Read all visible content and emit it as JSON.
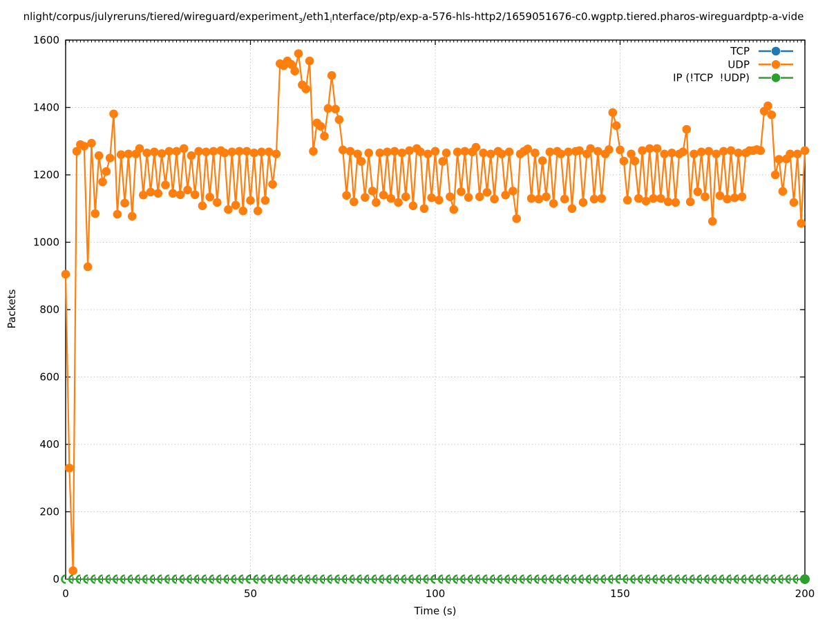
{
  "title": {
    "part1": "nlight/corpus/julyreruns/tiered/wireguard/experiment",
    "sub1": "3",
    "part2": "/eth1",
    "sub2": "i",
    "part3": "nterface/ptp/exp-a-576-hls-http2/1659051676-c0.wgptp.tiered.pharos-wireguardptp-a-vide"
  },
  "axes": {
    "ylabel": "Packets",
    "xlabel": "Time (s)",
    "x_ticks": [
      0,
      50,
      100,
      150,
      200
    ],
    "y_ticks": [
      0,
      200,
      400,
      600,
      800,
      1000,
      1200,
      1400,
      1600
    ],
    "xlim": [
      0,
      200
    ],
    "ylim": [
      0,
      1600
    ],
    "minor_x_tick_step": 1
  },
  "legend": {
    "position": "top-right",
    "entries": [
      {
        "label": "TCP",
        "color": "#1f77b4"
      },
      {
        "label": "UDP",
        "color": "#ff7f0e"
      },
      {
        "label": "IP (!TCP  !UDP)",
        "color": "#2ca02c"
      }
    ]
  },
  "colors": {
    "background": "#ffffff",
    "frame": "#000000",
    "grid": "#c8c8c8",
    "tcp": "#1f77b4",
    "udp": "#ff7f0e",
    "ip": "#2ca02c"
  },
  "chart_data": {
    "type": "line",
    "title": "nlight/corpus/julyreruns/tiered/wireguard/experiment₃/eth1ᵢnterface/ptp/exp-a-576-hls-http2/1659051676-c0.wgptp.tiered.pharos-wireguardptp-a-vide",
    "xlabel": "Time (s)",
    "ylabel": "Packets",
    "xlim": [
      0,
      200
    ],
    "ylim": [
      0,
      1600
    ],
    "grid": true,
    "legend_position": "top-right",
    "series": [
      {
        "name": "TCP",
        "color": "#1f77b4",
        "style": "linespoints",
        "constant_value": 0,
        "x_range": [
          0,
          200
        ],
        "x_step": 2
      },
      {
        "name": "UDP",
        "color": "#ff7f0e",
        "style": "linespoints",
        "points": [
          [
            0,
            905
          ],
          [
            1,
            330
          ],
          [
            2,
            25
          ],
          [
            3,
            1270
          ],
          [
            4,
            1290
          ],
          [
            5,
            1285
          ],
          [
            6,
            927
          ],
          [
            7,
            1294
          ],
          [
            8,
            1085
          ],
          [
            9,
            1257
          ],
          [
            10,
            1179
          ],
          [
            11,
            1210
          ],
          [
            12,
            1250
          ],
          [
            13,
            1381
          ],
          [
            14,
            1083
          ],
          [
            15,
            1260
          ],
          [
            16,
            1116
          ],
          [
            17,
            1262
          ],
          [
            18,
            1077
          ],
          [
            19,
            1262
          ],
          [
            20,
            1278
          ],
          [
            21,
            1140
          ],
          [
            22,
            1265
          ],
          [
            23,
            1149
          ],
          [
            24,
            1268
          ],
          [
            25,
            1145
          ],
          [
            26,
            1263
          ],
          [
            27,
            1170
          ],
          [
            28,
            1270
          ],
          [
            29,
            1145
          ],
          [
            30,
            1270
          ],
          [
            31,
            1141
          ],
          [
            32,
            1278
          ],
          [
            33,
            1155
          ],
          [
            34,
            1257
          ],
          [
            35,
            1141
          ],
          [
            36,
            1270
          ],
          [
            37,
            1108
          ],
          [
            38,
            1268
          ],
          [
            39,
            1134
          ],
          [
            40,
            1270
          ],
          [
            41,
            1118
          ],
          [
            42,
            1272
          ],
          [
            43,
            1265
          ],
          [
            44,
            1097
          ],
          [
            45,
            1268
          ],
          [
            46,
            1110
          ],
          [
            47,
            1270
          ],
          [
            48,
            1093
          ],
          [
            49,
            1270
          ],
          [
            50,
            1124
          ],
          [
            51,
            1265
          ],
          [
            52,
            1093
          ],
          [
            53,
            1268
          ],
          [
            54,
            1124
          ],
          [
            55,
            1268
          ],
          [
            56,
            1172
          ],
          [
            57,
            1262
          ],
          [
            58,
            1530
          ],
          [
            59,
            1524
          ],
          [
            60,
            1538
          ],
          [
            61,
            1528
          ],
          [
            62,
            1508
          ],
          [
            63,
            1560
          ],
          [
            64,
            1467
          ],
          [
            65,
            1455
          ],
          [
            66,
            1538
          ],
          [
            67,
            1270
          ],
          [
            68,
            1354
          ],
          [
            69,
            1344
          ],
          [
            70,
            1315
          ],
          [
            71,
            1397
          ],
          [
            72,
            1495
          ],
          [
            73,
            1395
          ],
          [
            74,
            1364
          ],
          [
            75,
            1274
          ],
          [
            76,
            1139
          ],
          [
            77,
            1270
          ],
          [
            78,
            1120
          ],
          [
            79,
            1262
          ],
          [
            80,
            1240
          ],
          [
            81,
            1133
          ],
          [
            82,
            1265
          ],
          [
            83,
            1152
          ],
          [
            84,
            1118
          ],
          [
            85,
            1265
          ],
          [
            86,
            1140
          ],
          [
            87,
            1268
          ],
          [
            88,
            1130
          ],
          [
            89,
            1270
          ],
          [
            90,
            1118
          ],
          [
            91,
            1265
          ],
          [
            92,
            1135
          ],
          [
            93,
            1272
          ],
          [
            94,
            1108
          ],
          [
            95,
            1278
          ],
          [
            96,
            1268
          ],
          [
            97,
            1100
          ],
          [
            98,
            1262
          ],
          [
            99,
            1132
          ],
          [
            100,
            1270
          ],
          [
            101,
            1125
          ],
          [
            102,
            1240
          ],
          [
            103,
            1265
          ],
          [
            104,
            1135
          ],
          [
            105,
            1097
          ],
          [
            106,
            1268
          ],
          [
            107,
            1150
          ],
          [
            108,
            1270
          ],
          [
            109,
            1133
          ],
          [
            110,
            1268
          ],
          [
            111,
            1282
          ],
          [
            112,
            1135
          ],
          [
            113,
            1265
          ],
          [
            114,
            1148
          ],
          [
            115,
            1262
          ],
          [
            116,
            1128
          ],
          [
            117,
            1270
          ],
          [
            118,
            1262
          ],
          [
            119,
            1140
          ],
          [
            120,
            1268
          ],
          [
            121,
            1152
          ],
          [
            122,
            1070
          ],
          [
            123,
            1262
          ],
          [
            124,
            1270
          ],
          [
            125,
            1277
          ],
          [
            126,
            1130
          ],
          [
            127,
            1265
          ],
          [
            128,
            1128
          ],
          [
            129,
            1242
          ],
          [
            130,
            1135
          ],
          [
            131,
            1268
          ],
          [
            132,
            1115
          ],
          [
            133,
            1270
          ],
          [
            134,
            1262
          ],
          [
            135,
            1128
          ],
          [
            136,
            1268
          ],
          [
            137,
            1100
          ],
          [
            138,
            1270
          ],
          [
            139,
            1272
          ],
          [
            140,
            1118
          ],
          [
            141,
            1262
          ],
          [
            142,
            1278
          ],
          [
            143,
            1128
          ],
          [
            144,
            1270
          ],
          [
            145,
            1130
          ],
          [
            146,
            1262
          ],
          [
            147,
            1275
          ],
          [
            148,
            1385
          ],
          [
            149,
            1346
          ],
          [
            150,
            1274
          ],
          [
            151,
            1241
          ],
          [
            152,
            1125
          ],
          [
            153,
            1262
          ],
          [
            154,
            1241
          ],
          [
            155,
            1130
          ],
          [
            156,
            1272
          ],
          [
            157,
            1122
          ],
          [
            158,
            1278
          ],
          [
            159,
            1130
          ],
          [
            160,
            1278
          ],
          [
            161,
            1130
          ],
          [
            162,
            1262
          ],
          [
            163,
            1120
          ],
          [
            164,
            1265
          ],
          [
            165,
            1118
          ],
          [
            166,
            1262
          ],
          [
            167,
            1268
          ],
          [
            168,
            1335
          ],
          [
            169,
            1120
          ],
          [
            170,
            1262
          ],
          [
            171,
            1150
          ],
          [
            172,
            1268
          ],
          [
            173,
            1135
          ],
          [
            174,
            1270
          ],
          [
            175,
            1062
          ],
          [
            176,
            1262
          ],
          [
            177,
            1138
          ],
          [
            178,
            1270
          ],
          [
            179,
            1128
          ],
          [
            180,
            1272
          ],
          [
            181,
            1132
          ],
          [
            182,
            1265
          ],
          [
            183,
            1135
          ],
          [
            184,
            1265
          ],
          [
            185,
            1272
          ],
          [
            186,
            1272
          ],
          [
            187,
            1275
          ],
          [
            188,
            1272
          ],
          [
            189,
            1389
          ],
          [
            190,
            1405
          ],
          [
            191,
            1378
          ],
          [
            192,
            1200
          ],
          [
            193,
            1246
          ],
          [
            194,
            1151
          ],
          [
            195,
            1247
          ],
          [
            196,
            1262
          ],
          [
            197,
            1118
          ],
          [
            198,
            1262
          ],
          [
            199,
            1056
          ],
          [
            200,
            1272
          ]
        ]
      },
      {
        "name": "IP (!TCP  !UDP)",
        "color": "#2ca02c",
        "style": "linespoints",
        "constant_value": 0,
        "x_range": [
          0,
          200
        ],
        "x_step": 2
      }
    ]
  }
}
